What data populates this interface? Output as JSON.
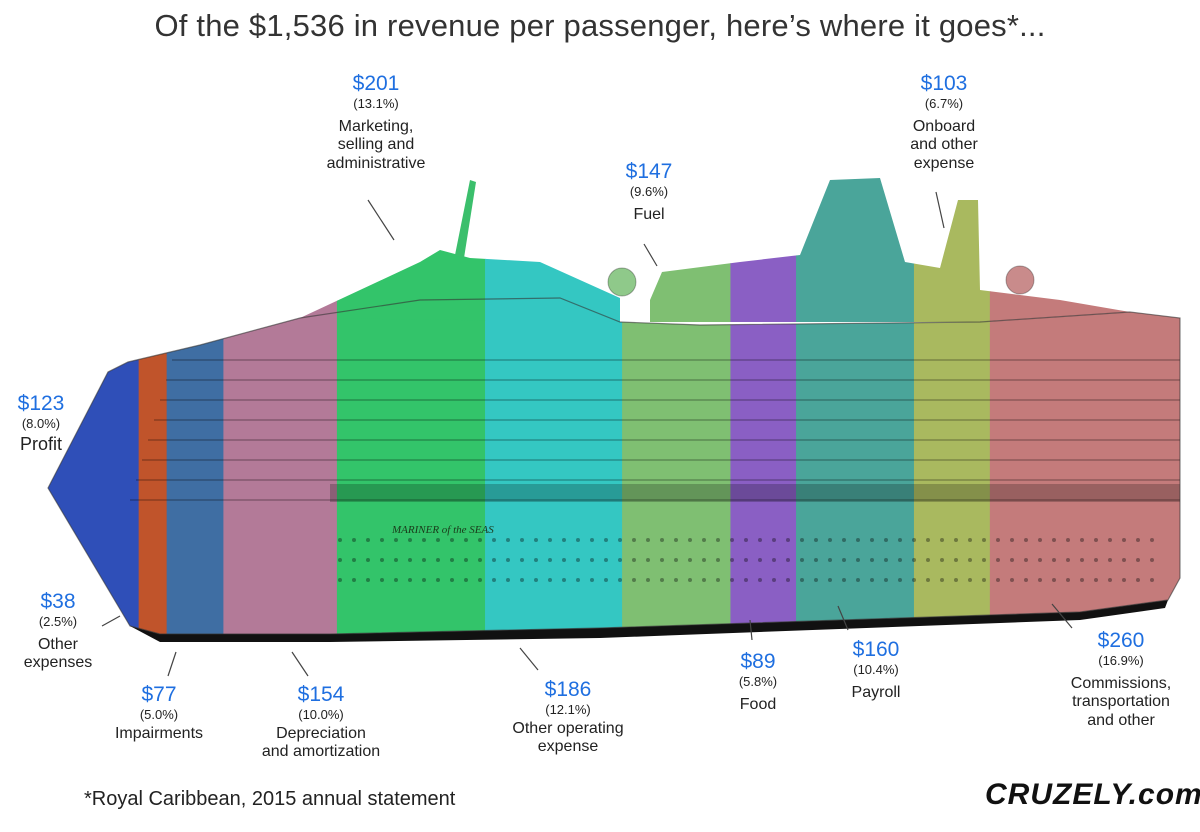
{
  "title": "Of the $1,536 in revenue per passenger, here’s where it goes*...",
  "footnote": "*Royal Caribbean, 2015 annual statement",
  "brand": "CRUZELY.com",
  "ship_name": "MARINER of the SEAS",
  "chart_data": {
    "type": "bar",
    "orientation": "horizontal-stacked",
    "total": 1536,
    "unit": "$",
    "categories": [
      "Profit",
      "Other expenses",
      "Impairments",
      "Depreciation and amortization",
      "Marketing, selling and administrative",
      "Other operating expense",
      "Fuel",
      "Food",
      "Payroll",
      "Onboard and other expense",
      "Commissions, transportation and other"
    ],
    "values": [
      123,
      38,
      77,
      154,
      201,
      186,
      147,
      89,
      160,
      103,
      260
    ],
    "segments": [
      {
        "amount": "$123",
        "pct": "(8.0%)",
        "label": "Profit",
        "value": 123,
        "color": "#2f4fb8"
      },
      {
        "amount": "$38",
        "pct": "(2.5%)",
        "label": "Other expenses",
        "value": 38,
        "color": "#c0542b"
      },
      {
        "amount": "$77",
        "pct": "(5.0%)",
        "label": "Impairments",
        "value": 77,
        "color": "#3f6ea3"
      },
      {
        "amount": "$154",
        "pct": "(10.0%)",
        "label": "Depreciation and amortization",
        "value": 154,
        "color": "#b37a98"
      },
      {
        "amount": "$201",
        "pct": "(13.1%)",
        "label": "Marketing, selling and administrative",
        "value": 201,
        "color": "#33c46a"
      },
      {
        "amount": "$186",
        "pct": "(12.1%)",
        "label": "Other operating expense",
        "value": 186,
        "color": "#34c7c2"
      },
      {
        "amount": "$147",
        "pct": "(9.6%)",
        "label": "Fuel",
        "value": 147,
        "color": "#7fbf72"
      },
      {
        "amount": "$89",
        "pct": "(5.8%)",
        "label": "Food",
        "value": 89,
        "color": "#8a5fc4"
      },
      {
        "amount": "$160",
        "pct": "(10.4%)",
        "label": "Payroll",
        "value": 160,
        "color": "#4aa59a"
      },
      {
        "amount": "$103",
        "pct": "(6.7%)",
        "label": "Onboard and other expense",
        "value": 103,
        "color": "#a9b95f"
      },
      {
        "amount": "$260",
        "pct": "(16.9%)",
        "label": "Commissions, transportation and other",
        "value": 260,
        "color": "#c47b7b"
      }
    ]
  }
}
